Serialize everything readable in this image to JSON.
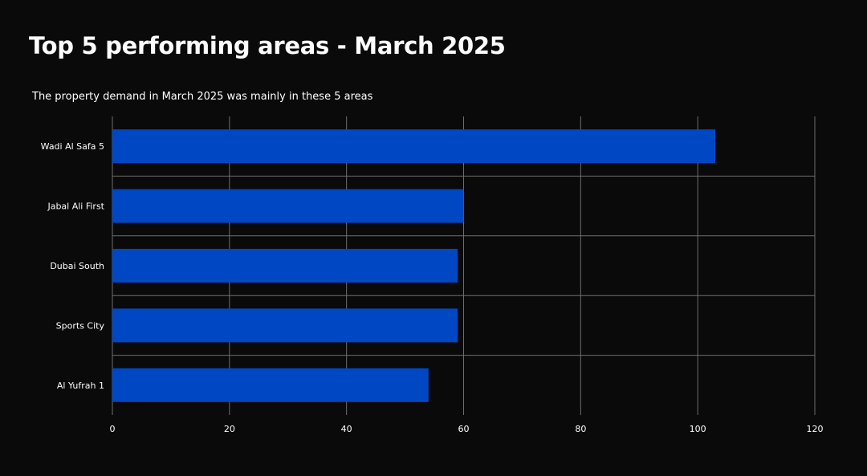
{
  "title": "Top 5 performing areas - March 2025",
  "subtitle": "The property demand in March 2025 was mainly in these 5 areas",
  "colors": {
    "bar": "#0047c4",
    "background": "#0a0a0a",
    "grid": "#6e6e6e",
    "text": "#ffffff"
  },
  "chart_data": {
    "type": "bar",
    "orientation": "horizontal",
    "categories": [
      "Wadi Al Safa 5",
      "Jabal Ali First",
      "Dubai South",
      "Sports City",
      "Al Yufrah 1"
    ],
    "values": [
      103,
      60,
      59,
      59,
      54
    ],
    "xlim": [
      0,
      120
    ],
    "xticks": [
      0,
      20,
      40,
      60,
      80,
      100,
      120
    ],
    "grid": true,
    "legend": "none"
  }
}
